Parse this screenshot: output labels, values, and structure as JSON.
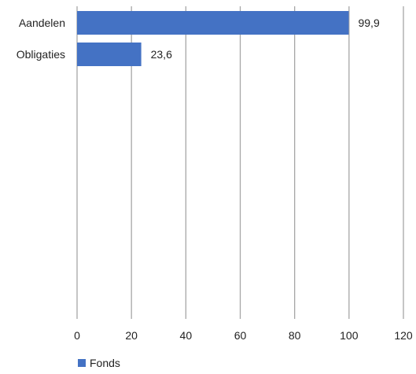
{
  "chart_data": {
    "type": "bar",
    "orientation": "horizontal",
    "categories": [
      "Aandelen",
      "Obligaties"
    ],
    "series": [
      {
        "name": "Fonds",
        "values": [
          99.9,
          23.6
        ],
        "data_labels": [
          "99,9",
          "23,6"
        ]
      }
    ],
    "xlim": [
      0,
      120
    ],
    "x_ticks": [
      0,
      20,
      40,
      60,
      80,
      100,
      120
    ],
    "grid": "vertical",
    "legend": "bottom-left",
    "colors": {
      "bar": "#4472c4",
      "grid": "#a6a6a6"
    }
  }
}
